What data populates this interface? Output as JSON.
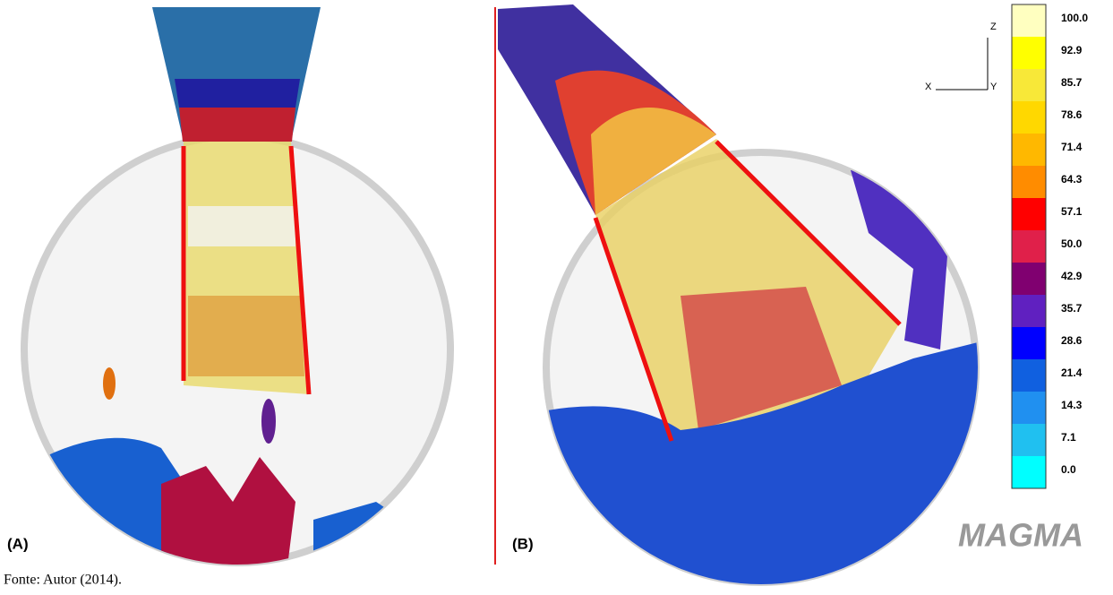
{
  "panels": [
    {
      "label": "(A)"
    },
    {
      "label": "(B)"
    }
  ],
  "axes_icon": {
    "z": "Z",
    "x": "X",
    "y": "Y"
  },
  "colorbar": {
    "labels": [
      "100.0",
      "92.9",
      "85.7",
      "78.6",
      "71.4",
      "64.3",
      "57.1",
      "50.0",
      "42.9",
      "35.7",
      "28.6",
      "21.4",
      "14.3",
      "7.1",
      "0.0"
    ]
  },
  "logo": "MAGMA",
  "caption": "Fonte: Autor (2014)."
}
